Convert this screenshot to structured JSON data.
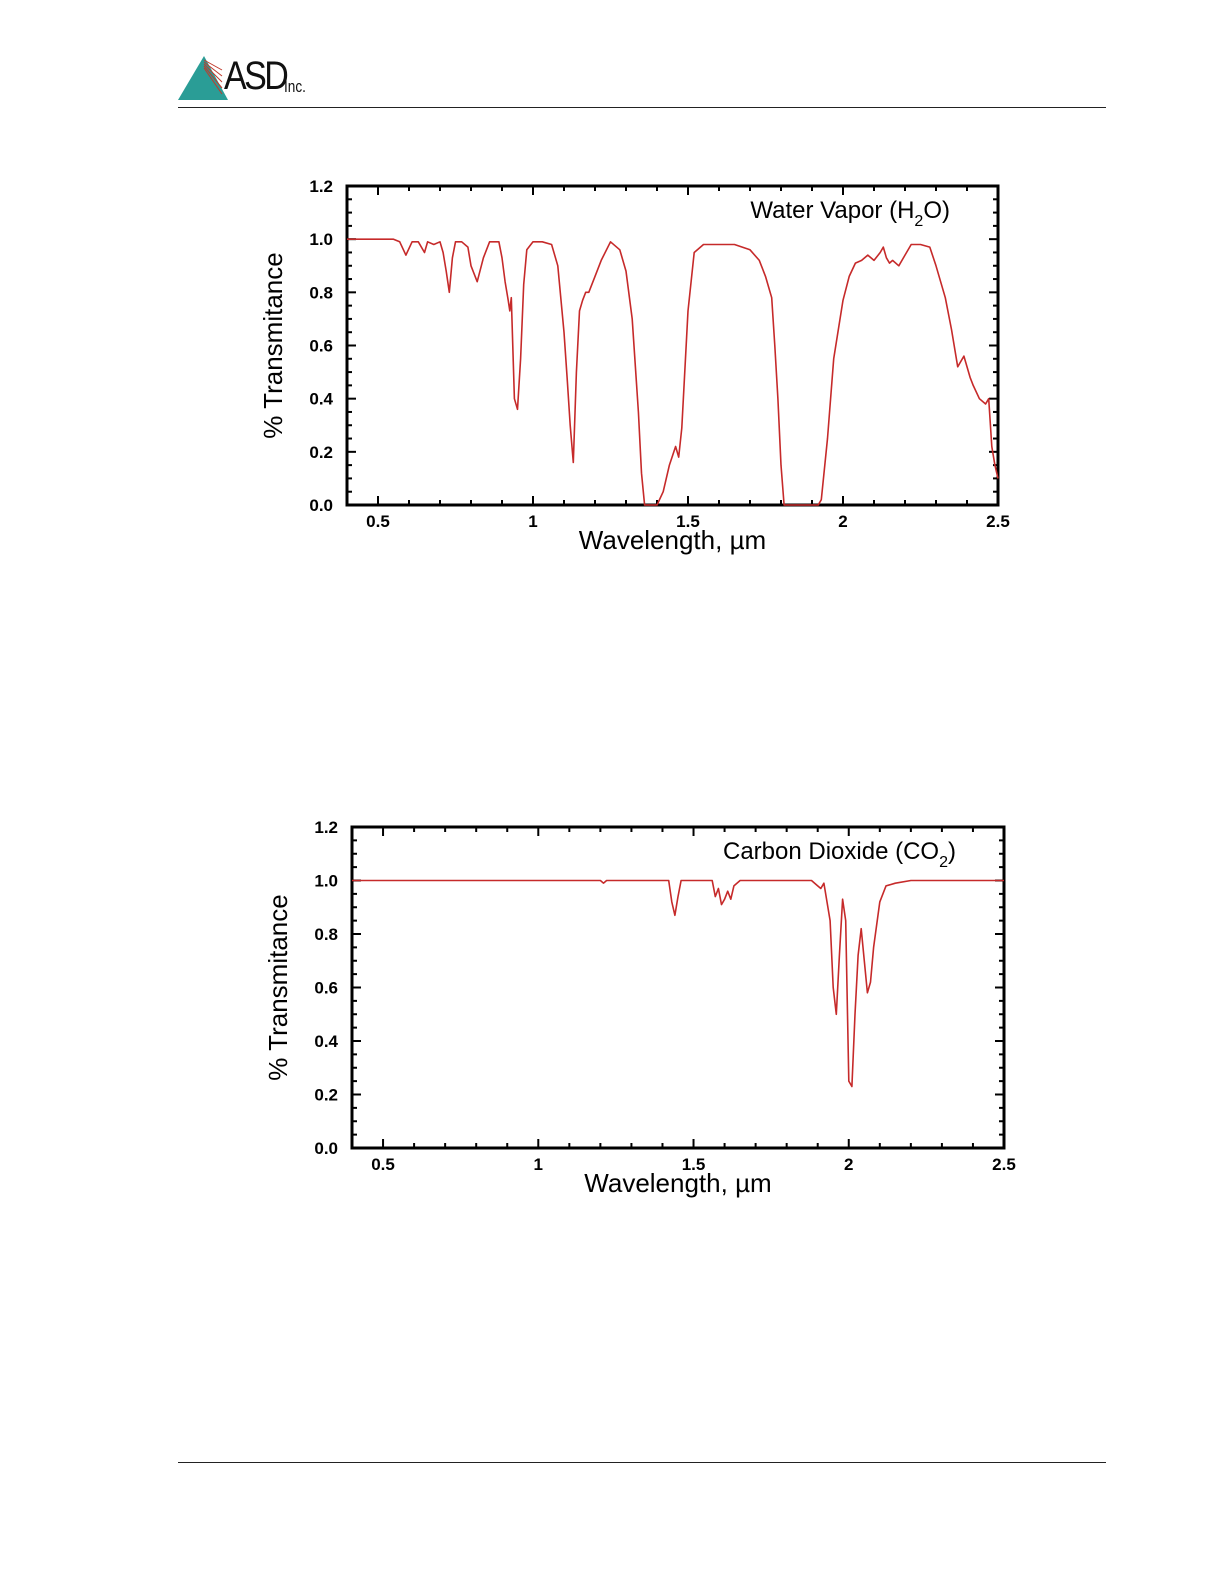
{
  "logo": {
    "text": "ASD",
    "suffix": "Inc.",
    "color": "#2a9d96",
    "accent": "#c0392b"
  },
  "colors": {
    "line": "#c62a2a",
    "axis": "#000000"
  },
  "chart_data": [
    {
      "type": "line",
      "title": "",
      "annotation": "Water Vapor (H2O)",
      "annotation_main": "Water Vapor (H",
      "annotation_sub": "2",
      "annotation_end": "O)",
      "xlabel": "Wavelength, µm",
      "ylabel": "% Transmitance",
      "xlim": [
        0.4,
        2.5
      ],
      "ylim": [
        0.0,
        1.2
      ],
      "xticks": [
        "0.5",
        "1",
        "1.5",
        "2",
        "2.5"
      ],
      "xtick_values": [
        0.5,
        1,
        1.5,
        2,
        2.5
      ],
      "yticks": [
        "0.0",
        "0.2",
        "0.4",
        "0.6",
        "0.8",
        "1.0",
        "1.2"
      ],
      "ytick_values": [
        0,
        0.2,
        0.4,
        0.6,
        0.8,
        1.0,
        1.2
      ],
      "grid": false,
      "series": [
        {
          "x": [
            0.4,
            0.55,
            0.57,
            0.59,
            0.61,
            0.63,
            0.65,
            0.66,
            0.68,
            0.7,
            0.71,
            0.72,
            0.73,
            0.74,
            0.75,
            0.77,
            0.79,
            0.8,
            0.82,
            0.84,
            0.86,
            0.88,
            0.89,
            0.9,
            0.91,
            0.92,
            0.925,
            0.93,
            0.94,
            0.95,
            0.96,
            0.97,
            0.98,
            1.0,
            1.03,
            1.06,
            1.08,
            1.1,
            1.11,
            1.12,
            1.13,
            1.14,
            1.15,
            1.16,
            1.17,
            1.18,
            1.2,
            1.22,
            1.25,
            1.28,
            1.3,
            1.32,
            1.34,
            1.35,
            1.36,
            1.37,
            1.4,
            1.42,
            1.44,
            1.46,
            1.47,
            1.48,
            1.5,
            1.52,
            1.55,
            1.6,
            1.65,
            1.7,
            1.73,
            1.75,
            1.77,
            1.78,
            1.79,
            1.8,
            1.81,
            1.82,
            1.84,
            1.88,
            1.9,
            1.92,
            1.93,
            1.95,
            1.97,
            2.0,
            2.02,
            2.04,
            2.06,
            2.08,
            2.1,
            2.12,
            2.13,
            2.14,
            2.15,
            2.16,
            2.18,
            2.2,
            2.22,
            2.25,
            2.28,
            2.3,
            2.33,
            2.35,
            2.37,
            2.39,
            2.41,
            2.42,
            2.44,
            2.46,
            2.47,
            2.48,
            2.49,
            2.5
          ],
          "y": [
            1.0,
            1.0,
            0.99,
            0.94,
            0.99,
            0.99,
            0.95,
            0.99,
            0.98,
            0.99,
            0.95,
            0.88,
            0.8,
            0.93,
            0.99,
            0.99,
            0.97,
            0.9,
            0.84,
            0.93,
            0.99,
            0.99,
            0.99,
            0.93,
            0.84,
            0.77,
            0.73,
            0.78,
            0.4,
            0.36,
            0.55,
            0.83,
            0.96,
            0.99,
            0.99,
            0.98,
            0.9,
            0.65,
            0.48,
            0.3,
            0.16,
            0.5,
            0.73,
            0.77,
            0.8,
            0.8,
            0.86,
            0.92,
            0.99,
            0.96,
            0.88,
            0.7,
            0.35,
            0.12,
            0.0,
            0.0,
            0.0,
            0.05,
            0.15,
            0.22,
            0.18,
            0.29,
            0.73,
            0.95,
            0.98,
            0.98,
            0.98,
            0.96,
            0.92,
            0.86,
            0.78,
            0.6,
            0.4,
            0.15,
            0.0,
            0.0,
            0.0,
            0.0,
            0.0,
            0.0,
            0.02,
            0.25,
            0.55,
            0.77,
            0.86,
            0.91,
            0.92,
            0.94,
            0.92,
            0.95,
            0.97,
            0.93,
            0.91,
            0.92,
            0.9,
            0.94,
            0.98,
            0.98,
            0.97,
            0.9,
            0.78,
            0.66,
            0.52,
            0.56,
            0.48,
            0.45,
            0.4,
            0.38,
            0.4,
            0.22,
            0.15,
            0.1
          ]
        }
      ]
    },
    {
      "type": "line",
      "title": "",
      "annotation": "Carbon Dioxide (CO2)",
      "annotation_main": "Carbon Dioxide (CO",
      "annotation_sub": "2",
      "annotation_end": ")",
      "xlabel": "Wavelength, µm",
      "ylabel": "% Transmitance",
      "xlim": [
        0.4,
        2.5
      ],
      "ylim": [
        0.0,
        1.2
      ],
      "xticks": [
        "0.5",
        "1",
        "1.5",
        "2",
        "2.5"
      ],
      "xtick_values": [
        0.5,
        1,
        1.5,
        2,
        2.5
      ],
      "yticks": [
        "0.0",
        "0.2",
        "0.4",
        "0.6",
        "0.8",
        "1.0",
        "1.2"
      ],
      "ytick_values": [
        0,
        0.2,
        0.4,
        0.6,
        0.8,
        1.0,
        1.2
      ],
      "grid": false,
      "series": [
        {
          "x": [
            0.4,
            1.2,
            1.21,
            1.22,
            1.23,
            1.42,
            1.43,
            1.44,
            1.45,
            1.46,
            1.56,
            1.57,
            1.58,
            1.59,
            1.6,
            1.61,
            1.62,
            1.63,
            1.65,
            1.88,
            1.9,
            1.91,
            1.92,
            1.94,
            1.95,
            1.96,
            1.97,
            1.98,
            1.99,
            2.0,
            2.01,
            2.02,
            2.03,
            2.04,
            2.05,
            2.06,
            2.07,
            2.08,
            2.1,
            2.12,
            2.15,
            2.2,
            2.5
          ],
          "y": [
            1.0,
            1.0,
            0.99,
            1.0,
            1.0,
            1.0,
            0.92,
            0.87,
            0.94,
            1.0,
            1.0,
            0.94,
            0.97,
            0.91,
            0.93,
            0.96,
            0.93,
            0.98,
            1.0,
            1.0,
            0.98,
            0.97,
            0.99,
            0.85,
            0.6,
            0.5,
            0.72,
            0.93,
            0.85,
            0.25,
            0.23,
            0.5,
            0.72,
            0.82,
            0.7,
            0.58,
            0.62,
            0.75,
            0.92,
            0.98,
            0.99,
            1.0,
            1.0
          ]
        }
      ]
    }
  ]
}
